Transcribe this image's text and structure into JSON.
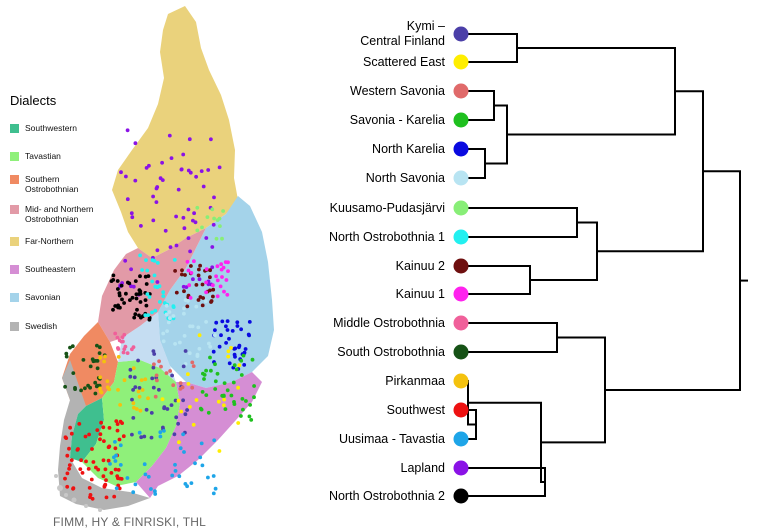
{
  "legend": {
    "title": "Dialects",
    "items": [
      {
        "label": "Southwestern",
        "color": "#3fbf8f"
      },
      {
        "label": "Tavastian",
        "color": "#8ff07a"
      },
      {
        "label": "Southern Ostrobothnian",
        "color": "#f08a62"
      },
      {
        "label": "Mid- and Northern Ostrobothnian",
        "color": "#e29aa7"
      },
      {
        "label": "Far-Northern",
        "color": "#ead27c"
      },
      {
        "label": "Southeastern",
        "color": "#d58ed4"
      },
      {
        "label": "Savonian",
        "color": "#a4d3ea"
      },
      {
        "label": "Swedish",
        "color": "#b3b3b3"
      }
    ]
  },
  "credit": "FIMM, HY & FINRISKI, THL",
  "dendrogram": {
    "leaves": [
      {
        "label": "Kymi –\nCentral Finland",
        "color": "#4b3fa8"
      },
      {
        "label": "Scattered East",
        "color": "#ffee00"
      },
      {
        "label": "Western Savonia",
        "color": "#e06a6a"
      },
      {
        "label": "Savonia - Karelia",
        "color": "#1fc01f"
      },
      {
        "label": "North Karelia",
        "color": "#0a0ae0"
      },
      {
        "label": "North Savonia",
        "color": "#b8e4f2"
      },
      {
        "label": "Kuusamo-Pudasjärvi",
        "color": "#88ee77"
      },
      {
        "label": "North Ostrobothnia 1",
        "color": "#22f0f0"
      },
      {
        "label": "Kainuu 2",
        "color": "#6e0f0f"
      },
      {
        "label": "Kainuu 1",
        "color": "#ff22ee"
      },
      {
        "label": "Middle Ostrobothnia",
        "color": "#f0609a"
      },
      {
        "label": "South Ostrobothnia",
        "color": "#165216"
      },
      {
        "label": "Pirkanmaa",
        "color": "#f4c20e"
      },
      {
        "label": "Southwest",
        "color": "#ee1111"
      },
      {
        "label": "Uusimaa - Tavastia",
        "color": "#1ea5e8"
      },
      {
        "label": "Lapland",
        "color": "#8a12e6"
      },
      {
        "label": "North Ostrobothnia 2",
        "color": "#000000"
      }
    ]
  }
}
